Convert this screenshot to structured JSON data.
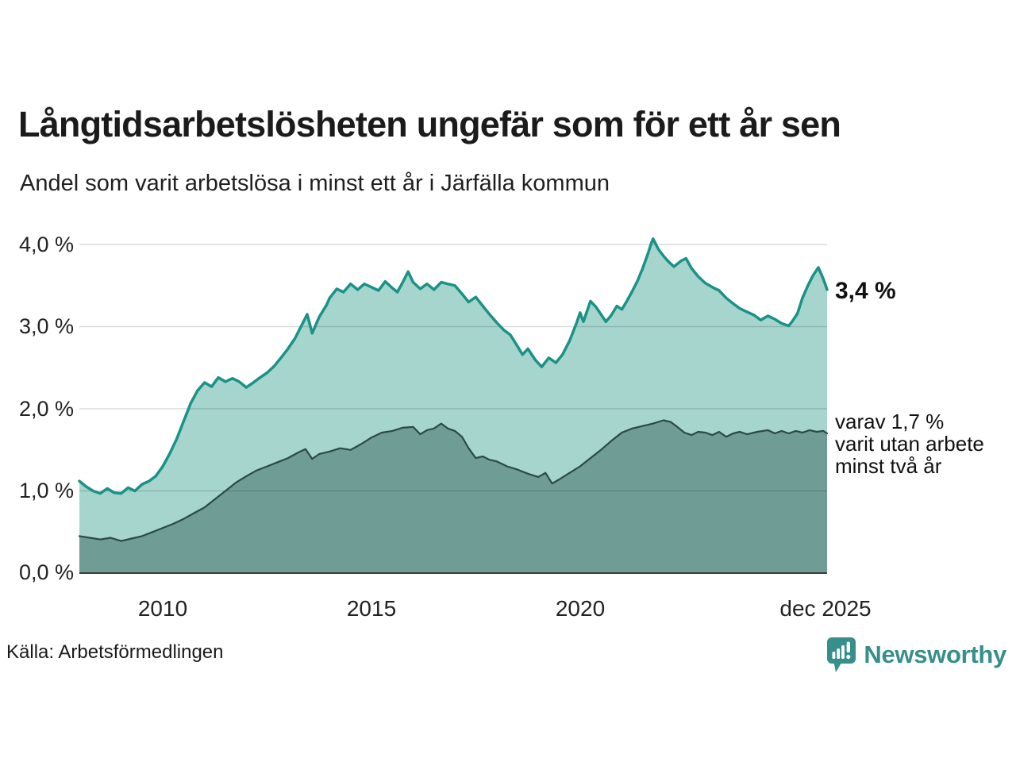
{
  "header": {
    "title": "Långtidsarbetslösheten ungefär som för ett år sen",
    "subtitle": "Andel som varit arbetslösa i minst ett år i Järfälla kommun"
  },
  "chart_data": {
    "type": "area",
    "title": "Långtidsarbetslösheten ungefär som för ett år sen",
    "subtitle": "Andel som varit arbetslösa i minst ett år i Järfälla kommun",
    "xlabel": "",
    "ylabel": "",
    "xlim": [
      2008.0,
      2025.92
    ],
    "ylim": [
      0,
      4.0
    ],
    "grid": "horizontal",
    "legend_position": "none",
    "yticks": [
      "4,0 %",
      "3,0 %",
      "2,0 %",
      "1,0 %",
      "0,0 %"
    ],
    "ytick_values": [
      4.0,
      3.0,
      2.0,
      1.0,
      0.0
    ],
    "xticks": [
      "2010",
      "2015",
      "2020",
      "dec 2025"
    ],
    "xtick_values": [
      2010,
      2015,
      2020,
      2025.92
    ],
    "colors": {
      "grid": "rgba(0,0,0,0.14)",
      "axis_line": "#3c3c3c",
      "background": "#ffffff"
    },
    "series": [
      {
        "name": "Andel arbetslösa minst ett år",
        "end_label": "3,4 %",
        "latest_value": 3.4,
        "stroke": "#1b9287",
        "fill": "#a5d5cd",
        "stroke_width": 3.5,
        "points": [
          [
            2008.0,
            1.12
          ],
          [
            2008.17,
            1.05
          ],
          [
            2008.33,
            1.0
          ],
          [
            2008.5,
            0.97
          ],
          [
            2008.67,
            1.03
          ],
          [
            2008.83,
            0.98
          ],
          [
            2009.0,
            0.97
          ],
          [
            2009.17,
            1.04
          ],
          [
            2009.33,
            1.0
          ],
          [
            2009.5,
            1.08
          ],
          [
            2009.67,
            1.12
          ],
          [
            2009.83,
            1.18
          ],
          [
            2010.0,
            1.3
          ],
          [
            2010.17,
            1.46
          ],
          [
            2010.33,
            1.63
          ],
          [
            2010.5,
            1.85
          ],
          [
            2010.67,
            2.07
          ],
          [
            2010.83,
            2.22
          ],
          [
            2011.0,
            2.32
          ],
          [
            2011.17,
            2.27
          ],
          [
            2011.33,
            2.38
          ],
          [
            2011.5,
            2.33
          ],
          [
            2011.67,
            2.37
          ],
          [
            2011.83,
            2.33
          ],
          [
            2012.0,
            2.26
          ],
          [
            2012.17,
            2.32
          ],
          [
            2012.33,
            2.38
          ],
          [
            2012.5,
            2.44
          ],
          [
            2012.67,
            2.52
          ],
          [
            2012.83,
            2.62
          ],
          [
            2013.0,
            2.73
          ],
          [
            2013.17,
            2.86
          ],
          [
            2013.33,
            3.02
          ],
          [
            2013.46,
            3.15
          ],
          [
            2013.58,
            2.92
          ],
          [
            2013.75,
            3.12
          ],
          [
            2013.92,
            3.26
          ],
          [
            2014.0,
            3.35
          ],
          [
            2014.17,
            3.46
          ],
          [
            2014.33,
            3.42
          ],
          [
            2014.5,
            3.52
          ],
          [
            2014.67,
            3.45
          ],
          [
            2014.83,
            3.52
          ],
          [
            2015.0,
            3.48
          ],
          [
            2015.17,
            3.44
          ],
          [
            2015.33,
            3.55
          ],
          [
            2015.5,
            3.47
          ],
          [
            2015.62,
            3.42
          ],
          [
            2015.75,
            3.54
          ],
          [
            2015.88,
            3.67
          ],
          [
            2016.0,
            3.54
          ],
          [
            2016.17,
            3.46
          ],
          [
            2016.33,
            3.52
          ],
          [
            2016.5,
            3.45
          ],
          [
            2016.67,
            3.54
          ],
          [
            2016.83,
            3.52
          ],
          [
            2017.0,
            3.5
          ],
          [
            2017.17,
            3.4
          ],
          [
            2017.33,
            3.3
          ],
          [
            2017.5,
            3.36
          ],
          [
            2017.67,
            3.25
          ],
          [
            2017.83,
            3.15
          ],
          [
            2018.0,
            3.05
          ],
          [
            2018.17,
            2.96
          ],
          [
            2018.33,
            2.9
          ],
          [
            2018.5,
            2.76
          ],
          [
            2018.62,
            2.66
          ],
          [
            2018.75,
            2.73
          ],
          [
            2018.92,
            2.6
          ],
          [
            2019.08,
            2.51
          ],
          [
            2019.25,
            2.62
          ],
          [
            2019.42,
            2.56
          ],
          [
            2019.58,
            2.66
          ],
          [
            2019.75,
            2.83
          ],
          [
            2019.92,
            3.05
          ],
          [
            2020.0,
            3.17
          ],
          [
            2020.08,
            3.06
          ],
          [
            2020.25,
            3.31
          ],
          [
            2020.38,
            3.24
          ],
          [
            2020.5,
            3.15
          ],
          [
            2020.62,
            3.06
          ],
          [
            2020.75,
            3.14
          ],
          [
            2020.88,
            3.25
          ],
          [
            2021.0,
            3.21
          ],
          [
            2021.12,
            3.31
          ],
          [
            2021.25,
            3.43
          ],
          [
            2021.38,
            3.56
          ],
          [
            2021.5,
            3.71
          ],
          [
            2021.62,
            3.88
          ],
          [
            2021.71,
            4.02
          ],
          [
            2021.75,
            4.07
          ],
          [
            2021.88,
            3.94
          ],
          [
            2022.0,
            3.86
          ],
          [
            2022.12,
            3.79
          ],
          [
            2022.25,
            3.73
          ],
          [
            2022.42,
            3.8
          ],
          [
            2022.54,
            3.83
          ],
          [
            2022.67,
            3.71
          ],
          [
            2022.83,
            3.61
          ],
          [
            2023.0,
            3.53
          ],
          [
            2023.17,
            3.48
          ],
          [
            2023.33,
            3.44
          ],
          [
            2023.5,
            3.35
          ],
          [
            2023.67,
            3.28
          ],
          [
            2023.83,
            3.22
          ],
          [
            2024.0,
            3.18
          ],
          [
            2024.17,
            3.14
          ],
          [
            2024.33,
            3.08
          ],
          [
            2024.5,
            3.13
          ],
          [
            2024.67,
            3.09
          ],
          [
            2024.83,
            3.04
          ],
          [
            2025.0,
            3.01
          ],
          [
            2025.08,
            3.06
          ],
          [
            2025.21,
            3.16
          ],
          [
            2025.33,
            3.35
          ],
          [
            2025.46,
            3.5
          ],
          [
            2025.58,
            3.62
          ],
          [
            2025.71,
            3.72
          ],
          [
            2025.83,
            3.58
          ],
          [
            2025.92,
            3.45
          ]
        ]
      },
      {
        "name": "varav utan arbete minst två år",
        "annotation_lines": [
          "varav 1,7 %",
          "varit utan arbete",
          "minst två år"
        ],
        "latest_value": 1.7,
        "stroke": "#2c4a44",
        "fill": "#6f9c95",
        "stroke_width": 2.2,
        "points": [
          [
            2008.0,
            0.45
          ],
          [
            2008.25,
            0.43
          ],
          [
            2008.5,
            0.41
          ],
          [
            2008.75,
            0.43
          ],
          [
            2009.0,
            0.39
          ],
          [
            2009.25,
            0.42
          ],
          [
            2009.5,
            0.45
          ],
          [
            2009.75,
            0.5
          ],
          [
            2010.0,
            0.55
          ],
          [
            2010.25,
            0.6
          ],
          [
            2010.5,
            0.66
          ],
          [
            2010.75,
            0.73
          ],
          [
            2011.0,
            0.8
          ],
          [
            2011.25,
            0.9
          ],
          [
            2011.5,
            1.0
          ],
          [
            2011.75,
            1.1
          ],
          [
            2012.0,
            1.18
          ],
          [
            2012.25,
            1.25
          ],
          [
            2012.5,
            1.3
          ],
          [
            2012.75,
            1.35
          ],
          [
            2013.0,
            1.4
          ],
          [
            2013.25,
            1.47
          ],
          [
            2013.42,
            1.51
          ],
          [
            2013.58,
            1.39
          ],
          [
            2013.75,
            1.45
          ],
          [
            2014.0,
            1.48
          ],
          [
            2014.25,
            1.52
          ],
          [
            2014.5,
            1.5
          ],
          [
            2014.75,
            1.57
          ],
          [
            2015.0,
            1.65
          ],
          [
            2015.25,
            1.71
          ],
          [
            2015.5,
            1.73
          ],
          [
            2015.75,
            1.77
          ],
          [
            2016.0,
            1.78
          ],
          [
            2016.17,
            1.69
          ],
          [
            2016.33,
            1.74
          ],
          [
            2016.5,
            1.76
          ],
          [
            2016.67,
            1.82
          ],
          [
            2016.83,
            1.76
          ],
          [
            2017.0,
            1.73
          ],
          [
            2017.17,
            1.66
          ],
          [
            2017.33,
            1.52
          ],
          [
            2017.5,
            1.4
          ],
          [
            2017.67,
            1.42
          ],
          [
            2017.83,
            1.38
          ],
          [
            2018.0,
            1.36
          ],
          [
            2018.25,
            1.3
          ],
          [
            2018.5,
            1.26
          ],
          [
            2018.75,
            1.21
          ],
          [
            2019.0,
            1.17
          ],
          [
            2019.17,
            1.22
          ],
          [
            2019.33,
            1.09
          ],
          [
            2019.5,
            1.14
          ],
          [
            2019.75,
            1.22
          ],
          [
            2020.0,
            1.3
          ],
          [
            2020.25,
            1.4
          ],
          [
            2020.5,
            1.5
          ],
          [
            2020.75,
            1.61
          ],
          [
            2021.0,
            1.71
          ],
          [
            2021.25,
            1.76
          ],
          [
            2021.5,
            1.79
          ],
          [
            2021.75,
            1.82
          ],
          [
            2022.0,
            1.86
          ],
          [
            2022.17,
            1.84
          ],
          [
            2022.33,
            1.78
          ],
          [
            2022.5,
            1.71
          ],
          [
            2022.67,
            1.68
          ],
          [
            2022.83,
            1.72
          ],
          [
            2023.0,
            1.71
          ],
          [
            2023.17,
            1.68
          ],
          [
            2023.33,
            1.72
          ],
          [
            2023.5,
            1.66
          ],
          [
            2023.67,
            1.7
          ],
          [
            2023.83,
            1.72
          ],
          [
            2024.0,
            1.69
          ],
          [
            2024.25,
            1.72
          ],
          [
            2024.5,
            1.74
          ],
          [
            2024.67,
            1.7
          ],
          [
            2024.83,
            1.73
          ],
          [
            2025.0,
            1.7
          ],
          [
            2025.17,
            1.73
          ],
          [
            2025.33,
            1.71
          ],
          [
            2025.5,
            1.74
          ],
          [
            2025.67,
            1.72
          ],
          [
            2025.83,
            1.73
          ],
          [
            2025.92,
            1.7
          ]
        ]
      }
    ]
  },
  "footer": {
    "source": "Källa: Arbetsförmedlingen",
    "brand": "Newsworthy",
    "brand_color": "#368f8a"
  }
}
